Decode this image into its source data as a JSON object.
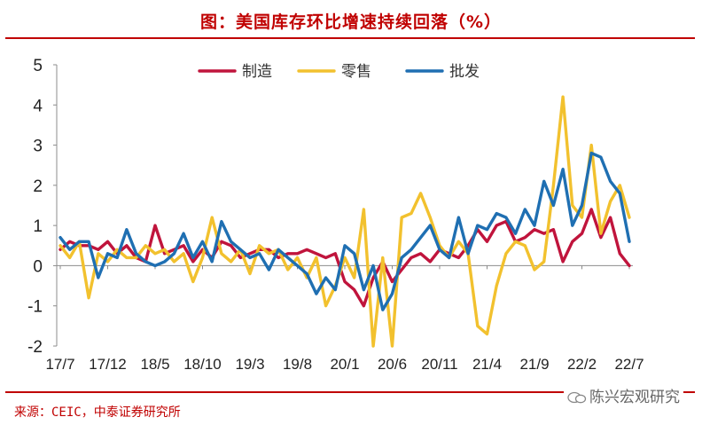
{
  "title": "图：美国库存环比增速持续回落（%）",
  "source": "来源：CEIC，中泰证券研究所",
  "watermark": "陈兴宏观研究",
  "chart_data": {
    "type": "line",
    "x": [
      "17/7",
      "17/8",
      "17/9",
      "17/10",
      "17/11",
      "17/12",
      "18/1",
      "18/2",
      "18/3",
      "18/4",
      "18/5",
      "18/6",
      "18/7",
      "18/8",
      "18/9",
      "18/10",
      "18/11",
      "18/12",
      "19/1",
      "19/2",
      "19/3",
      "19/4",
      "19/5",
      "19/6",
      "19/7",
      "19/8",
      "19/9",
      "19/10",
      "19/11",
      "19/12",
      "20/1",
      "20/2",
      "20/3",
      "20/4",
      "20/5",
      "20/6",
      "20/7",
      "20/8",
      "20/9",
      "20/10",
      "20/11",
      "20/12",
      "21/1",
      "21/2",
      "21/3",
      "21/4",
      "21/5",
      "21/6",
      "21/7",
      "21/8",
      "21/9",
      "21/10",
      "21/11",
      "21/12",
      "22/1",
      "22/2",
      "22/3",
      "22/4",
      "22/5",
      "22/6",
      "22/7"
    ],
    "xticks": [
      "17/7",
      "17/12",
      "18/5",
      "18/10",
      "19/3",
      "19/8",
      "20/1",
      "20/6",
      "20/11",
      "21/4",
      "21/9",
      "22/2",
      "22/7"
    ],
    "ylim": [
      -2,
      5
    ],
    "yticks": [
      5,
      4,
      3,
      2,
      1,
      0,
      -1,
      -2
    ],
    "legend_position": "top",
    "series": [
      {
        "name": "制造",
        "color": "#c0143c",
        "values": [
          0.4,
          0.6,
          0.5,
          0.5,
          0.4,
          0.6,
          0.3,
          0.5,
          0.2,
          0.1,
          1.0,
          0.3,
          0.4,
          0.5,
          0.1,
          0.4,
          0.2,
          0.6,
          0.5,
          0.2,
          0.3,
          0.4,
          0.4,
          0.2,
          0.3,
          0.3,
          0.4,
          0.3,
          0.2,
          0.3,
          -0.4,
          -0.6,
          -1.0,
          -0.3,
          0.1,
          -0.4,
          -0.1,
          0.2,
          0.3,
          0.1,
          0.4,
          0.3,
          0.2,
          0.5,
          0.9,
          0.6,
          1.0,
          1.1,
          0.6,
          0.7,
          0.9,
          0.8,
          0.9,
          0.1,
          0.6,
          0.8,
          1.4,
          0.7,
          1.2,
          0.3,
          0.0
        ]
      },
      {
        "name": "零售",
        "color": "#f2c12e",
        "values": [
          0.5,
          0.2,
          0.6,
          -0.8,
          0.3,
          0.1,
          0.4,
          0.2,
          0.2,
          0.5,
          0.3,
          0.4,
          0.1,
          0.3,
          -0.4,
          0.2,
          1.2,
          0.3,
          0.1,
          0.4,
          -0.2,
          0.5,
          0.3,
          0.4,
          -0.1,
          0.2,
          -0.3,
          0.2,
          -1.0,
          -0.5,
          0.2,
          -0.3,
          1.4,
          -2.0,
          0.2,
          -2.0,
          1.2,
          1.3,
          1.8,
          1.2,
          0.5,
          0.2,
          0.6,
          0.3,
          -1.5,
          -1.7,
          -0.5,
          0.3,
          0.6,
          0.5,
          -0.1,
          0.1,
          2.0,
          4.2,
          1.5,
          1.2,
          3.0,
          0.8,
          1.6,
          2.0,
          1.2
        ]
      },
      {
        "name": "批发",
        "color": "#1f6fb2",
        "values": [
          0.7,
          0.4,
          0.6,
          0.6,
          -0.3,
          0.3,
          0.2,
          0.9,
          0.3,
          0.1,
          0.0,
          0.1,
          0.3,
          0.8,
          0.2,
          0.6,
          0.1,
          1.1,
          0.6,
          0.4,
          0.2,
          0.3,
          -0.1,
          0.4,
          0.2,
          0.0,
          -0.2,
          -0.7,
          -0.3,
          -0.6,
          0.5,
          0.3,
          -0.6,
          0.0,
          -1.1,
          -0.7,
          0.2,
          0.4,
          0.7,
          1.0,
          0.4,
          0.2,
          1.2,
          0.3,
          1.0,
          0.9,
          1.3,
          1.2,
          0.8,
          1.4,
          1.0,
          2.1,
          1.5,
          2.4,
          1.0,
          1.5,
          2.8,
          2.7,
          2.1,
          1.8,
          0.6
        ]
      }
    ]
  }
}
